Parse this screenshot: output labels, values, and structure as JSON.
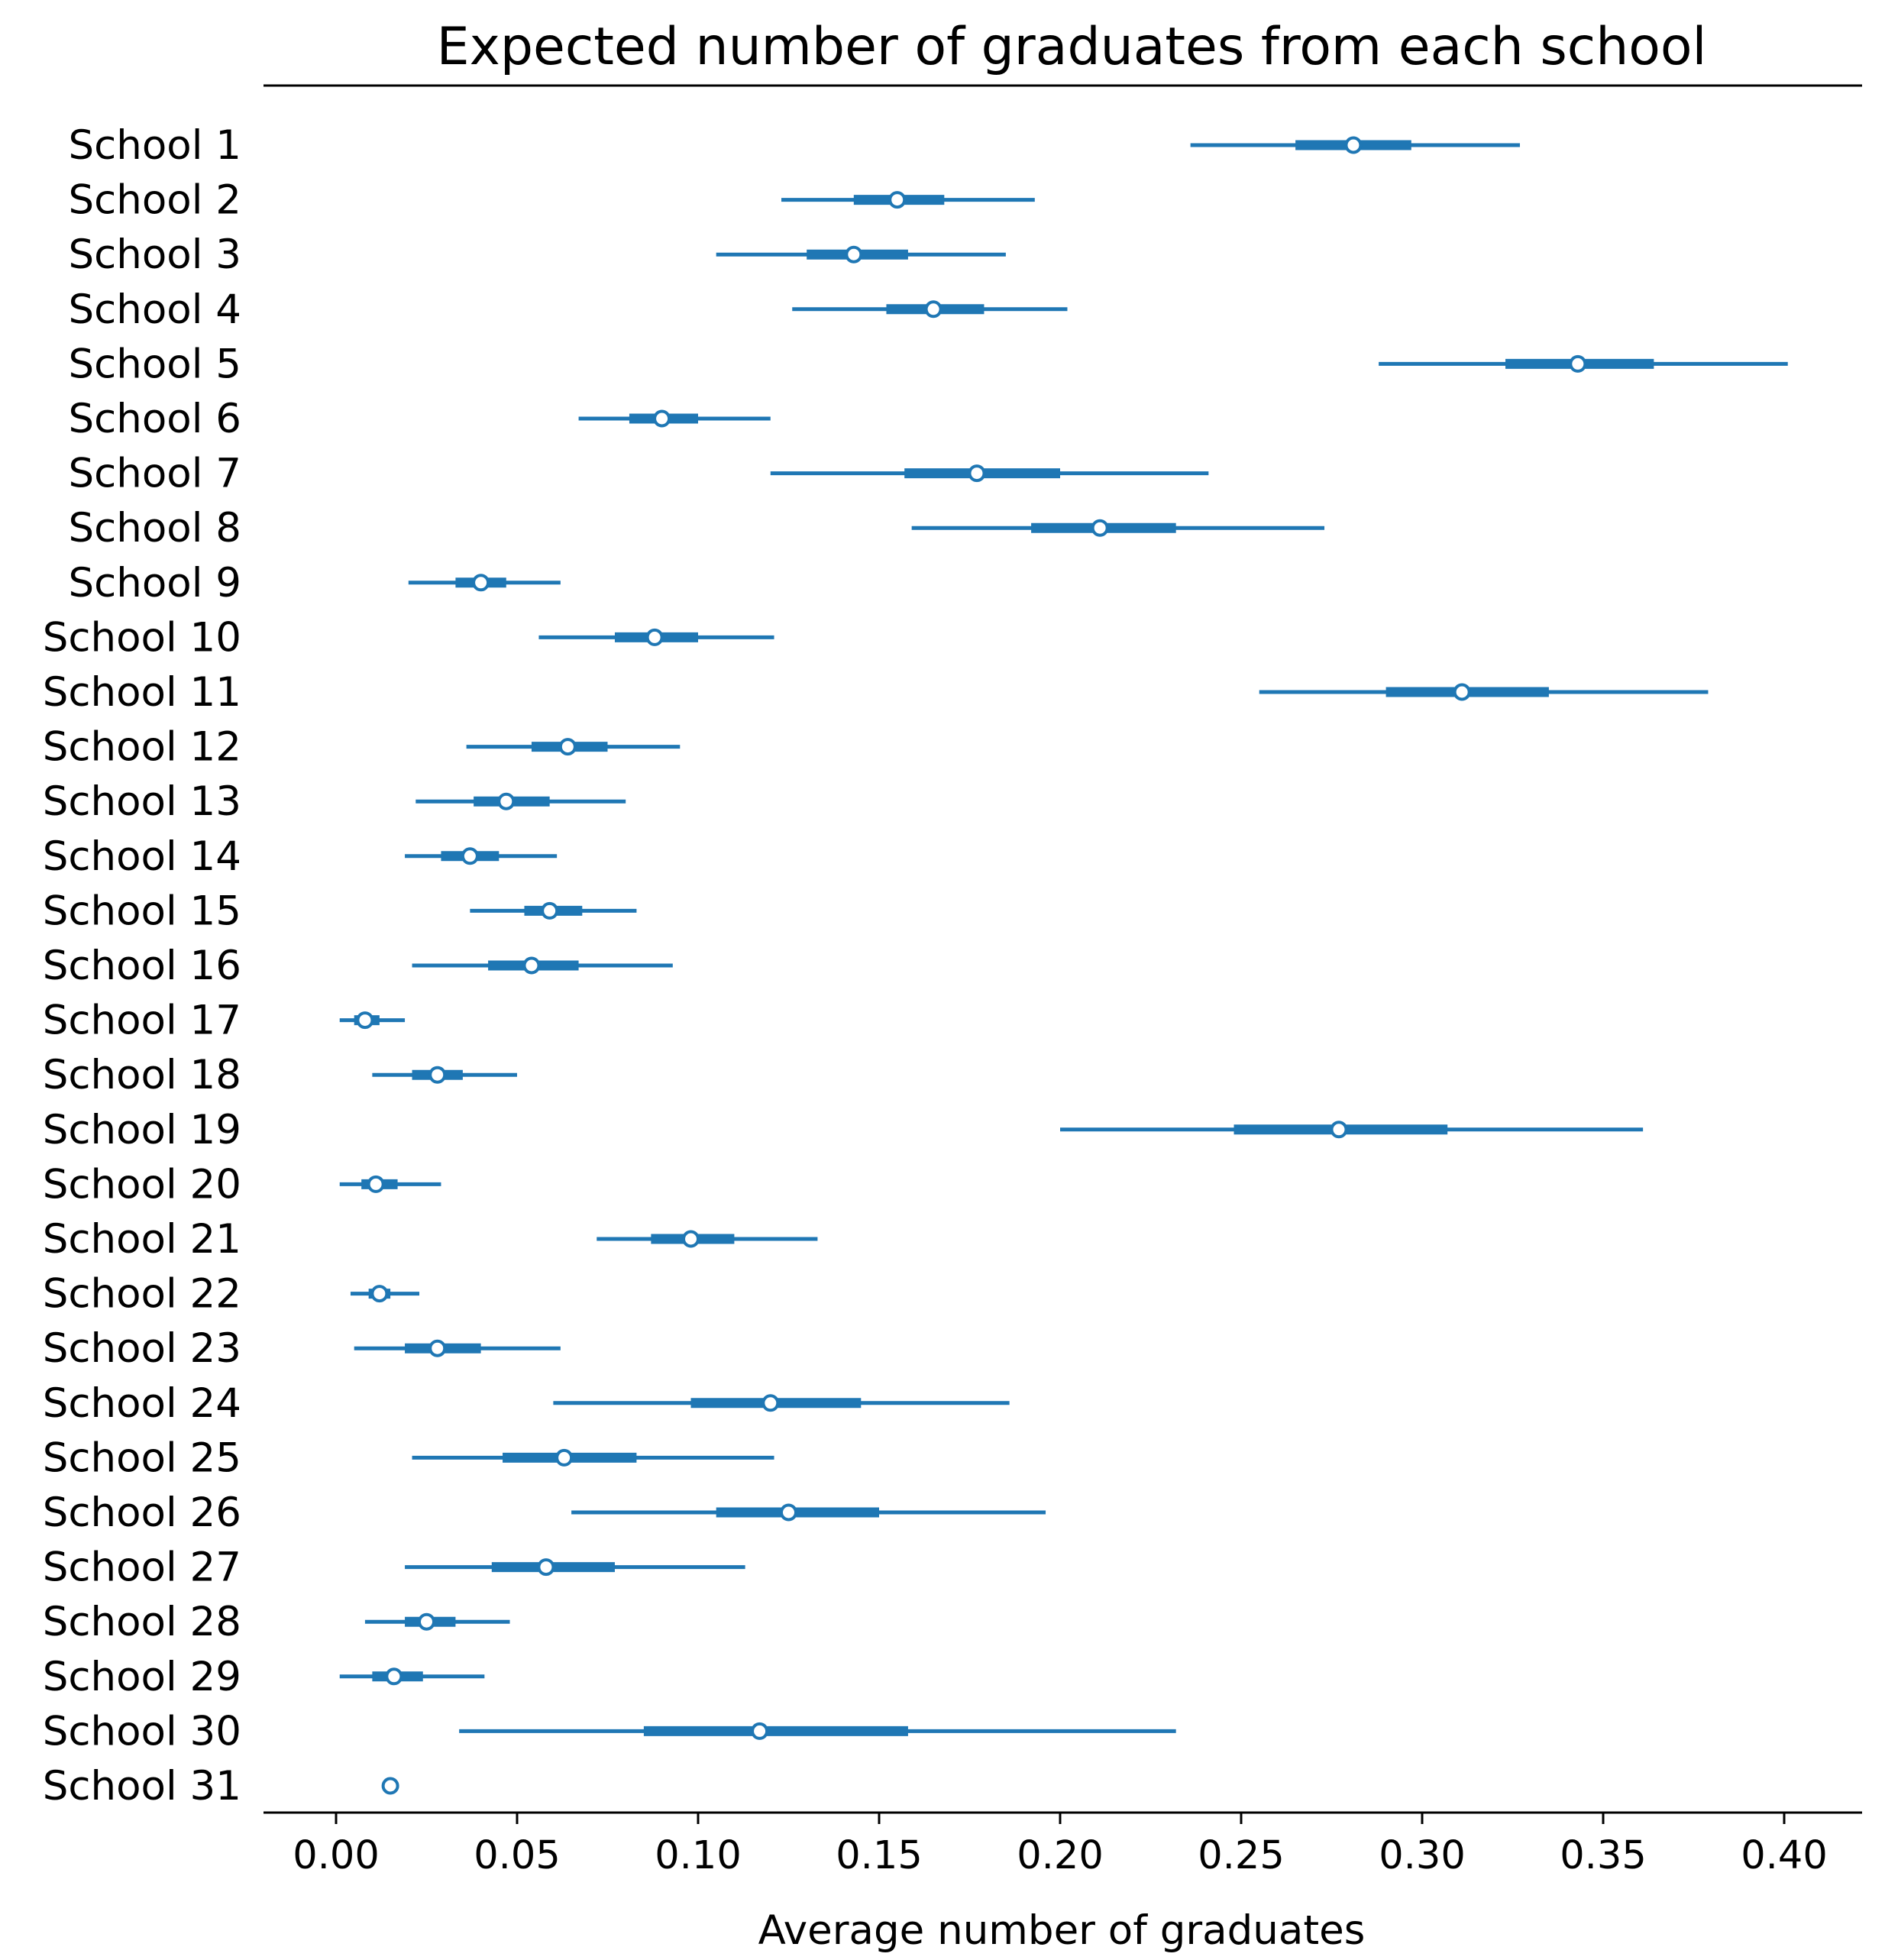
{
  "chart_data": {
    "type": "forest",
    "title": "Expected number of graduates from each school",
    "xlabel": "Average number of graduates",
    "ylabel": "",
    "xlim": [
      -0.02,
      0.42
    ],
    "xticks": [
      0.0,
      0.05,
      0.1,
      0.15,
      0.2,
      0.25,
      0.3,
      0.35,
      0.4
    ],
    "xtick_labels": [
      "0.00",
      "0.05",
      "0.10",
      "0.15",
      "0.20",
      "0.25",
      "0.30",
      "0.35",
      "0.40"
    ],
    "grid": false,
    "colors": {
      "series": "#1f77b4",
      "marker_fill": "#ffffff",
      "axis": "#000000"
    },
    "categories": [
      "School 1",
      "School 2",
      "School 3",
      "School 4",
      "School 5",
      "School 6",
      "School 7",
      "School 8",
      "School 9",
      "School 10",
      "School 11",
      "School 12",
      "School 13",
      "School 14",
      "School 15",
      "School 16",
      "School 17",
      "School 18",
      "School 19",
      "School 20",
      "School 21",
      "School 22",
      "School 23",
      "School 24",
      "School 25",
      "School 26",
      "School 27",
      "School 28",
      "School 29",
      "School 30",
      "School 31"
    ],
    "rows": [
      {
        "median": 0.281,
        "iqr": [
          0.265,
          0.297
        ],
        "range": [
          0.236,
          0.327
        ]
      },
      {
        "median": 0.155,
        "iqr": [
          0.143,
          0.168
        ],
        "range": [
          0.123,
          0.193
        ]
      },
      {
        "median": 0.143,
        "iqr": [
          0.13,
          0.158
        ],
        "range": [
          0.105,
          0.185
        ]
      },
      {
        "median": 0.165,
        "iqr": [
          0.152,
          0.179
        ],
        "range": [
          0.126,
          0.202
        ]
      },
      {
        "median": 0.343,
        "iqr": [
          0.323,
          0.364
        ],
        "range": [
          0.288,
          0.401
        ]
      },
      {
        "median": 0.09,
        "iqr": [
          0.081,
          0.1
        ],
        "range": [
          0.067,
          0.12
        ]
      },
      {
        "median": 0.177,
        "iqr": [
          0.157,
          0.2
        ],
        "range": [
          0.12,
          0.241
        ]
      },
      {
        "median": 0.211,
        "iqr": [
          0.192,
          0.232
        ],
        "range": [
          0.159,
          0.273
        ]
      },
      {
        "median": 0.04,
        "iqr": [
          0.033,
          0.047
        ],
        "range": [
          0.02,
          0.062
        ]
      },
      {
        "median": 0.088,
        "iqr": [
          0.077,
          0.1
        ],
        "range": [
          0.056,
          0.121
        ]
      },
      {
        "median": 0.311,
        "iqr": [
          0.29,
          0.335
        ],
        "range": [
          0.255,
          0.379
        ]
      },
      {
        "median": 0.064,
        "iqr": [
          0.054,
          0.075
        ],
        "range": [
          0.036,
          0.095
        ]
      },
      {
        "median": 0.047,
        "iqr": [
          0.038,
          0.059
        ],
        "range": [
          0.022,
          0.08
        ]
      },
      {
        "median": 0.037,
        "iqr": [
          0.029,
          0.045
        ],
        "range": [
          0.019,
          0.061
        ]
      },
      {
        "median": 0.059,
        "iqr": [
          0.052,
          0.068
        ],
        "range": [
          0.037,
          0.083
        ]
      },
      {
        "median": 0.054,
        "iqr": [
          0.042,
          0.067
        ],
        "range": [
          0.021,
          0.093
        ]
      },
      {
        "median": 0.008,
        "iqr": [
          0.005,
          0.012
        ],
        "range": [
          0.001,
          0.019
        ]
      },
      {
        "median": 0.028,
        "iqr": [
          0.021,
          0.035
        ],
        "range": [
          0.01,
          0.05
        ]
      },
      {
        "median": 0.277,
        "iqr": [
          0.248,
          0.307
        ],
        "range": [
          0.2,
          0.361
        ]
      },
      {
        "median": 0.011,
        "iqr": [
          0.007,
          0.017
        ],
        "range": [
          0.001,
          0.029
        ]
      },
      {
        "median": 0.098,
        "iqr": [
          0.087,
          0.11
        ],
        "range": [
          0.072,
          0.133
        ]
      },
      {
        "median": 0.012,
        "iqr": [
          0.009,
          0.015
        ],
        "range": [
          0.004,
          0.023
        ]
      },
      {
        "median": 0.028,
        "iqr": [
          0.019,
          0.04
        ],
        "range": [
          0.005,
          0.062
        ]
      },
      {
        "median": 0.12,
        "iqr": [
          0.098,
          0.145
        ],
        "range": [
          0.06,
          0.186
        ]
      },
      {
        "median": 0.063,
        "iqr": [
          0.046,
          0.083
        ],
        "range": [
          0.021,
          0.121
        ]
      },
      {
        "median": 0.125,
        "iqr": [
          0.105,
          0.15
        ],
        "range": [
          0.065,
          0.196
        ]
      },
      {
        "median": 0.058,
        "iqr": [
          0.043,
          0.077
        ],
        "range": [
          0.019,
          0.113
        ]
      },
      {
        "median": 0.025,
        "iqr": [
          0.019,
          0.033
        ],
        "range": [
          0.008,
          0.048
        ]
      },
      {
        "median": 0.016,
        "iqr": [
          0.01,
          0.024
        ],
        "range": [
          0.001,
          0.041
        ]
      },
      {
        "median": 0.117,
        "iqr": [
          0.085,
          0.158
        ],
        "range": [
          0.034,
          0.232
        ]
      },
      {
        "median": 0.015,
        "iqr": [
          0.015,
          0.015
        ],
        "range": [
          0.015,
          0.015
        ]
      }
    ]
  }
}
